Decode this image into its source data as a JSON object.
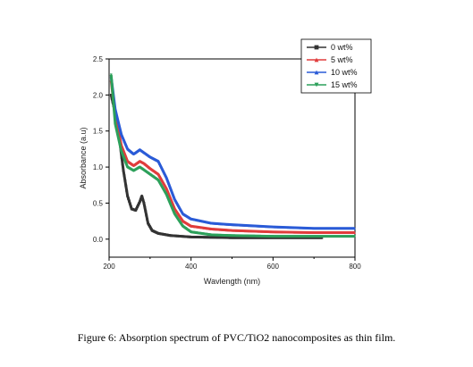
{
  "caption": "Figure 6: Absorption spectrum of PVC/TiO2 nanocomposites as thin film.",
  "chart_data": {
    "type": "line",
    "xlabel": "Wavlength (nm)",
    "ylabel": "Absorbance (a.u)",
    "xlim": [
      200,
      800
    ],
    "ylim": [
      -0.25,
      2.5
    ],
    "xticks": [
      200,
      400,
      600,
      800
    ],
    "yticks": [
      0.0,
      0.5,
      1.0,
      1.5,
      2.0,
      2.5
    ],
    "ytick_labels": [
      "0.0",
      "0.5",
      "1.0",
      "1.5",
      "2.0",
      "2.5"
    ],
    "grid": false,
    "legend_position": "top-right",
    "series": [
      {
        "name": "0 wt%",
        "color": "#333333",
        "marker": "square",
        "x": [
          205,
          215,
          225,
          235,
          245,
          255,
          265,
          275,
          280,
          285,
          295,
          305,
          320,
          350,
          400,
          500,
          600,
          700,
          720
        ],
        "y": [
          2.0,
          1.75,
          1.4,
          0.95,
          0.6,
          0.42,
          0.4,
          0.52,
          0.6,
          0.5,
          0.22,
          0.12,
          0.08,
          0.05,
          0.03,
          0.02,
          0.02,
          0.02,
          0.02
        ]
      },
      {
        "name": "5 wt%",
        "color": "#e03c3c",
        "marker": "triangle-up",
        "x": [
          205,
          215,
          230,
          245,
          260,
          275,
          285,
          300,
          320,
          340,
          360,
          380,
          400,
          450,
          500,
          600,
          700,
          800
        ],
        "y": [
          2.2,
          1.7,
          1.3,
          1.08,
          1.02,
          1.08,
          1.05,
          0.98,
          0.9,
          0.7,
          0.42,
          0.25,
          0.18,
          0.14,
          0.12,
          0.1,
          0.09,
          0.09
        ]
      },
      {
        "name": "10 wt%",
        "color": "#2a5bd7",
        "marker": "triangle-up",
        "x": [
          205,
          215,
          230,
          245,
          260,
          275,
          285,
          300,
          320,
          340,
          360,
          380,
          400,
          450,
          500,
          600,
          700,
          800
        ],
        "y": [
          2.25,
          1.8,
          1.45,
          1.25,
          1.18,
          1.24,
          1.2,
          1.14,
          1.08,
          0.85,
          0.55,
          0.35,
          0.28,
          0.22,
          0.2,
          0.17,
          0.15,
          0.15
        ]
      },
      {
        "name": "15 wt%",
        "color": "#2ca05a",
        "marker": "triangle-down",
        "x": [
          205,
          215,
          230,
          245,
          260,
          275,
          285,
          300,
          320,
          340,
          360,
          380,
          400,
          450,
          500,
          600,
          700,
          800
        ],
        "y": [
          2.28,
          1.6,
          1.22,
          1.0,
          0.95,
          1.0,
          0.96,
          0.9,
          0.82,
          0.62,
          0.35,
          0.18,
          0.1,
          0.06,
          0.05,
          0.04,
          0.04,
          0.04
        ]
      }
    ]
  }
}
